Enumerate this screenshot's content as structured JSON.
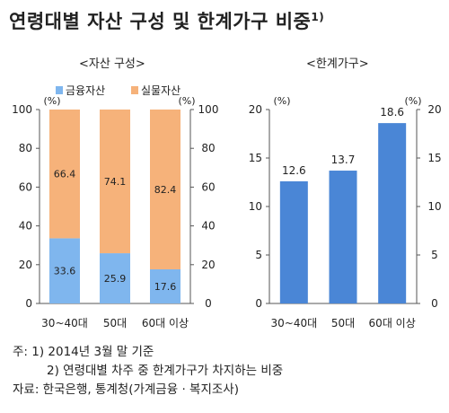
{
  "title": "연령대별 자산 구성 및 한계가구 비중",
  "title_sup": "1)",
  "chart_data": [
    {
      "type": "bar",
      "stacked": true,
      "subtitle": "<자산 구성>",
      "unit_left": "(%)",
      "unit_right": "(%)",
      "categories": [
        "30~40대",
        "50대",
        "60대 이상"
      ],
      "series": [
        {
          "name": "금융자산",
          "color": "#7fb6ee",
          "values": [
            33.6,
            25.9,
            17.6
          ]
        },
        {
          "name": "실물자산",
          "color": "#f6b27a",
          "values": [
            66.4,
            74.1,
            82.4
          ]
        }
      ],
      "ylim": [
        0,
        100
      ],
      "yticks": [
        "0",
        "20",
        "40",
        "60",
        "80",
        "100"
      ],
      "legend_position": "top"
    },
    {
      "type": "bar",
      "subtitle": "<한계가구>",
      "unit_left": "(%)",
      "unit_right": "(%)",
      "categories": [
        "30~40대",
        "50대",
        "60대 이상"
      ],
      "series": [
        {
          "color": "#4a86d6",
          "values": [
            12.6,
            13.7,
            18.6
          ]
        }
      ],
      "ylim": [
        0,
        20
      ],
      "yticks": [
        "0",
        "5",
        "10",
        "15",
        "20"
      ]
    }
  ],
  "notes": {
    "line1": "주:  1)  2014년 3월 말 기준",
    "line2": "2)  연령대별 차주 중 한계가구가 차지하는 비중",
    "line3": "자료:  한국은행, 통계청(가계금융 · 복지조사)"
  }
}
